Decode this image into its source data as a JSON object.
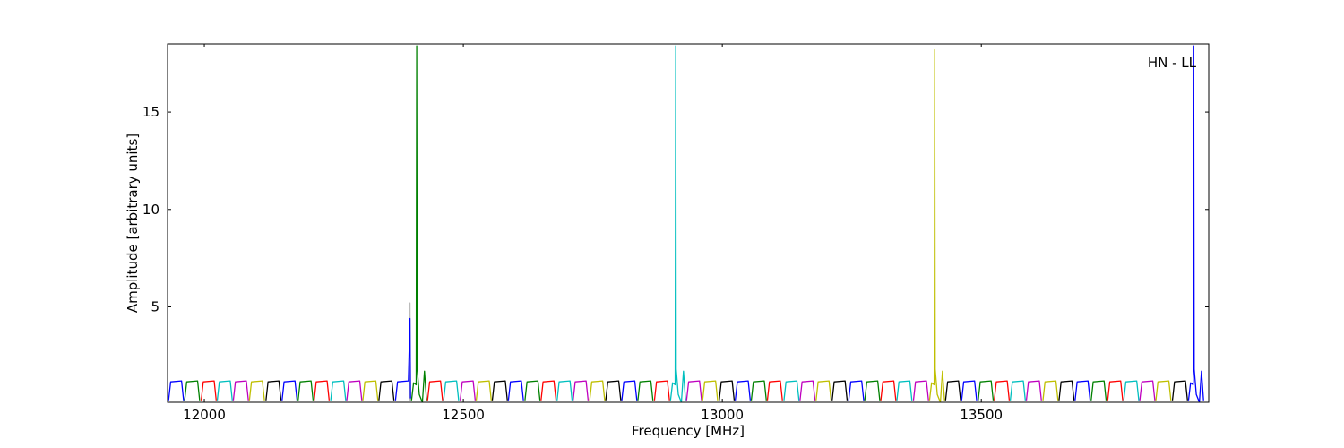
{
  "chart_data": {
    "type": "line",
    "xlabel": "Frequency [MHz]",
    "ylabel": "Amplitude [arbitrary units]",
    "annotation": "HN - LL",
    "xlim": [
      11929,
      13939
    ],
    "ylim": [
      0.1,
      18.5
    ],
    "xticks": [
      12000,
      12500,
      13000,
      13500
    ],
    "yticks": [
      5,
      10,
      15
    ],
    "series": [
      {
        "color": "#0000ff",
        "x": [
          11931,
          11935,
          11956,
          11960
        ],
        "values": [
          0.2,
          1.15,
          1.2,
          0.2
        ]
      },
      {
        "color": "#008000",
        "x": [
          11962,
          11966,
          11987,
          11991
        ],
        "values": [
          0.2,
          1.15,
          1.2,
          0.2
        ]
      },
      {
        "color": "#ff0000",
        "x": [
          11994,
          11998,
          12019,
          12023
        ],
        "values": [
          0.2,
          1.15,
          1.2,
          0.2
        ]
      },
      {
        "color": "#00bfbf",
        "x": [
          12025,
          12029,
          12050,
          12054
        ],
        "values": [
          0.2,
          1.15,
          1.2,
          0.2
        ]
      },
      {
        "color": "#bf00bf",
        "x": [
          12056,
          12060,
          12081,
          12085
        ],
        "values": [
          0.2,
          1.15,
          1.2,
          0.2
        ]
      },
      {
        "color": "#bfbf00",
        "x": [
          12087,
          12091,
          12112,
          12116
        ],
        "values": [
          0.2,
          1.15,
          1.2,
          0.2
        ]
      },
      {
        "color": "#000000",
        "x": [
          12119,
          12123,
          12144,
          12148
        ],
        "values": [
          0.2,
          1.15,
          1.2,
          0.2
        ]
      },
      {
        "color": "#0000ff",
        "x": [
          12150,
          12154,
          12175,
          12179
        ],
        "values": [
          0.2,
          1.15,
          1.2,
          0.2
        ]
      },
      {
        "color": "#008000",
        "x": [
          12181,
          12185,
          12206,
          12210
        ],
        "values": [
          0.2,
          1.15,
          1.2,
          0.2
        ]
      },
      {
        "color": "#ff0000",
        "x": [
          12212,
          12216,
          12237,
          12241
        ],
        "values": [
          0.2,
          1.15,
          1.2,
          0.2
        ]
      },
      {
        "color": "#00bfbf",
        "x": [
          12244,
          12248,
          12269,
          12273
        ],
        "values": [
          0.2,
          1.15,
          1.2,
          0.2
        ]
      },
      {
        "color": "#bf00bf",
        "x": [
          12275,
          12279,
          12300,
          12304
        ],
        "values": [
          0.2,
          1.15,
          1.2,
          0.2
        ]
      },
      {
        "color": "#bfbf00",
        "x": [
          12306,
          12310,
          12331,
          12335
        ],
        "values": [
          0.2,
          1.15,
          1.2,
          0.2
        ]
      },
      {
        "color": "#000000",
        "x": [
          12337,
          12341,
          12362,
          12366
        ],
        "values": [
          0.2,
          1.15,
          1.2,
          0.2
        ]
      },
      {
        "color": "#bbbbbb",
        "x": [
          12396,
          12397,
          12398
        ],
        "values": [
          0.2,
          5.2,
          0.2
        ]
      },
      {
        "color": "#0000ff",
        "x": [
          12369,
          12373,
          12394,
          12397,
          12398
        ],
        "values": [
          0.2,
          1.15,
          1.2,
          4.4,
          0.3
        ]
      },
      {
        "color": "#008000",
        "x": [
          12400,
          12404,
          12409,
          12410,
          12411,
          12415,
          12421,
          12425,
          12429
        ],
        "values": [
          0.2,
          1.1,
          1.0,
          18.4,
          1.8,
          0.5,
          0.1,
          1.7,
          0.2
        ]
      },
      {
        "color": "#ff0000",
        "x": [
          12431,
          12435,
          12456,
          12460
        ],
        "values": [
          0.2,
          1.15,
          1.2,
          0.2
        ]
      },
      {
        "color": "#00bfbf",
        "x": [
          12462,
          12466,
          12487,
          12491
        ],
        "values": [
          0.2,
          1.15,
          1.2,
          0.2
        ]
      },
      {
        "color": "#bf00bf",
        "x": [
          12494,
          12498,
          12519,
          12523
        ],
        "values": [
          0.2,
          1.15,
          1.2,
          0.2
        ]
      },
      {
        "color": "#bfbf00",
        "x": [
          12525,
          12529,
          12550,
          12554
        ],
        "values": [
          0.2,
          1.15,
          1.2,
          0.2
        ]
      },
      {
        "color": "#000000",
        "x": [
          12556,
          12560,
          12581,
          12585
        ],
        "values": [
          0.2,
          1.15,
          1.2,
          0.2
        ]
      },
      {
        "color": "#0000ff",
        "x": [
          12587,
          12591,
          12612,
          12616
        ],
        "values": [
          0.2,
          1.15,
          1.2,
          0.2
        ]
      },
      {
        "color": "#008000",
        "x": [
          12619,
          12623,
          12644,
          12648
        ],
        "values": [
          0.2,
          1.15,
          1.2,
          0.2
        ]
      },
      {
        "color": "#ff0000",
        "x": [
          12650,
          12654,
          12675,
          12679
        ],
        "values": [
          0.2,
          1.15,
          1.2,
          0.2
        ]
      },
      {
        "color": "#00bfbf",
        "x": [
          12681,
          12685,
          12706,
          12710
        ],
        "values": [
          0.2,
          1.15,
          1.2,
          0.2
        ]
      },
      {
        "color": "#bf00bf",
        "x": [
          12712,
          12716,
          12737,
          12741
        ],
        "values": [
          0.2,
          1.15,
          1.2,
          0.2
        ]
      },
      {
        "color": "#bfbf00",
        "x": [
          12744,
          12748,
          12769,
          12773
        ],
        "values": [
          0.2,
          1.15,
          1.2,
          0.2
        ]
      },
      {
        "color": "#000000",
        "x": [
          12775,
          12779,
          12800,
          12804
        ],
        "values": [
          0.2,
          1.15,
          1.2,
          0.2
        ]
      },
      {
        "color": "#0000ff",
        "x": [
          12806,
          12810,
          12831,
          12835
        ],
        "values": [
          0.2,
          1.15,
          1.2,
          0.2
        ]
      },
      {
        "color": "#008000",
        "x": [
          12837,
          12841,
          12862,
          12866
        ],
        "values": [
          0.2,
          1.15,
          1.2,
          0.2
        ]
      },
      {
        "color": "#ff0000",
        "x": [
          12869,
          12873,
          12894,
          12898
        ],
        "values": [
          0.2,
          1.15,
          1.2,
          0.2
        ]
      },
      {
        "color": "#00bfbf",
        "x": [
          12900,
          12904,
          12909,
          12910,
          12911,
          12915,
          12921,
          12925,
          12929
        ],
        "values": [
          0.2,
          1.1,
          1.0,
          18.4,
          1.8,
          0.5,
          0.1,
          1.7,
          0.2
        ]
      },
      {
        "color": "#bf00bf",
        "x": [
          12931,
          12935,
          12956,
          12960
        ],
        "values": [
          0.2,
          1.15,
          1.2,
          0.2
        ]
      },
      {
        "color": "#bfbf00",
        "x": [
          12962,
          12966,
          12987,
          12991
        ],
        "values": [
          0.2,
          1.15,
          1.2,
          0.2
        ]
      },
      {
        "color": "#000000",
        "x": [
          12994,
          12998,
          13019,
          13023
        ],
        "values": [
          0.2,
          1.15,
          1.2,
          0.2
        ]
      },
      {
        "color": "#0000ff",
        "x": [
          13025,
          13029,
          13050,
          13054
        ],
        "values": [
          0.2,
          1.15,
          1.2,
          0.2
        ]
      },
      {
        "color": "#008000",
        "x": [
          13056,
          13060,
          13081,
          13085
        ],
        "values": [
          0.2,
          1.15,
          1.2,
          0.2
        ]
      },
      {
        "color": "#ff0000",
        "x": [
          13087,
          13091,
          13112,
          13116
        ],
        "values": [
          0.2,
          1.15,
          1.2,
          0.2
        ]
      },
      {
        "color": "#00bfbf",
        "x": [
          13119,
          13123,
          13144,
          13148
        ],
        "values": [
          0.2,
          1.15,
          1.2,
          0.2
        ]
      },
      {
        "color": "#bf00bf",
        "x": [
          13150,
          13154,
          13175,
          13179
        ],
        "values": [
          0.2,
          1.15,
          1.2,
          0.2
        ]
      },
      {
        "color": "#bfbf00",
        "x": [
          13181,
          13185,
          13206,
          13210
        ],
        "values": [
          0.2,
          1.15,
          1.2,
          0.2
        ]
      },
      {
        "color": "#000000",
        "x": [
          13212,
          13216,
          13237,
          13241
        ],
        "values": [
          0.2,
          1.15,
          1.2,
          0.2
        ]
      },
      {
        "color": "#0000ff",
        "x": [
          13244,
          13248,
          13269,
          13273
        ],
        "values": [
          0.2,
          1.15,
          1.2,
          0.2
        ]
      },
      {
        "color": "#008000",
        "x": [
          13275,
          13279,
          13300,
          13304
        ],
        "values": [
          0.2,
          1.15,
          1.2,
          0.2
        ]
      },
      {
        "color": "#ff0000",
        "x": [
          13306,
          13310,
          13331,
          13335
        ],
        "values": [
          0.2,
          1.15,
          1.2,
          0.2
        ]
      },
      {
        "color": "#00bfbf",
        "x": [
          13337,
          13341,
          13362,
          13366
        ],
        "values": [
          0.2,
          1.15,
          1.2,
          0.2
        ]
      },
      {
        "color": "#bf00bf",
        "x": [
          13369,
          13373,
          13394,
          13398
        ],
        "values": [
          0.2,
          1.15,
          1.2,
          0.2
        ]
      },
      {
        "color": "#bfbf00",
        "x": [
          13400,
          13404,
          13409,
          13410,
          13411,
          13415,
          13421,
          13425,
          13429
        ],
        "values": [
          0.2,
          1.1,
          1.0,
          18.2,
          1.8,
          0.5,
          0.1,
          1.7,
          0.2
        ]
      },
      {
        "color": "#000000",
        "x": [
          13431,
          13435,
          13456,
          13460
        ],
        "values": [
          0.2,
          1.15,
          1.2,
          0.2
        ]
      },
      {
        "color": "#0000ff",
        "x": [
          13462,
          13466,
          13487,
          13491
        ],
        "values": [
          0.2,
          1.15,
          1.2,
          0.2
        ]
      },
      {
        "color": "#008000",
        "x": [
          13494,
          13498,
          13519,
          13523
        ],
        "values": [
          0.2,
          1.15,
          1.2,
          0.2
        ]
      },
      {
        "color": "#ff0000",
        "x": [
          13525,
          13529,
          13550,
          13554
        ],
        "values": [
          0.2,
          1.15,
          1.2,
          0.2
        ]
      },
      {
        "color": "#00bfbf",
        "x": [
          13556,
          13560,
          13581,
          13585
        ],
        "values": [
          0.2,
          1.15,
          1.2,
          0.2
        ]
      },
      {
        "color": "#bf00bf",
        "x": [
          13587,
          13591,
          13612,
          13616
        ],
        "values": [
          0.2,
          1.15,
          1.2,
          0.2
        ]
      },
      {
        "color": "#bfbf00",
        "x": [
          13619,
          13623,
          13644,
          13648
        ],
        "values": [
          0.2,
          1.15,
          1.2,
          0.2
        ]
      },
      {
        "color": "#000000",
        "x": [
          13650,
          13654,
          13675,
          13679
        ],
        "values": [
          0.2,
          1.15,
          1.2,
          0.2
        ]
      },
      {
        "color": "#0000ff",
        "x": [
          13681,
          13685,
          13706,
          13710
        ],
        "values": [
          0.2,
          1.15,
          1.2,
          0.2
        ]
      },
      {
        "color": "#008000",
        "x": [
          13712,
          13716,
          13737,
          13741
        ],
        "values": [
          0.2,
          1.15,
          1.2,
          0.2
        ]
      },
      {
        "color": "#ff0000",
        "x": [
          13744,
          13748,
          13769,
          13773
        ],
        "values": [
          0.2,
          1.15,
          1.2,
          0.2
        ]
      },
      {
        "color": "#00bfbf",
        "x": [
          13775,
          13779,
          13800,
          13804
        ],
        "values": [
          0.2,
          1.15,
          1.2,
          0.2
        ]
      },
      {
        "color": "#bf00bf",
        "x": [
          13806,
          13810,
          13831,
          13835
        ],
        "values": [
          0.2,
          1.15,
          1.2,
          0.2
        ]
      },
      {
        "color": "#bfbf00",
        "x": [
          13837,
          13841,
          13862,
          13866
        ],
        "values": [
          0.2,
          1.15,
          1.2,
          0.2
        ]
      },
      {
        "color": "#000000",
        "x": [
          13869,
          13873,
          13894,
          13898
        ],
        "values": [
          0.2,
          1.15,
          1.2,
          0.2
        ]
      },
      {
        "color": "#0000ff",
        "x": [
          13900,
          13904,
          13909,
          13910,
          13911,
          13915,
          13921,
          13925,
          13929
        ],
        "values": [
          0.2,
          1.1,
          1.0,
          18.4,
          1.8,
          0.5,
          0.1,
          1.7,
          0.2
        ]
      }
    ]
  }
}
